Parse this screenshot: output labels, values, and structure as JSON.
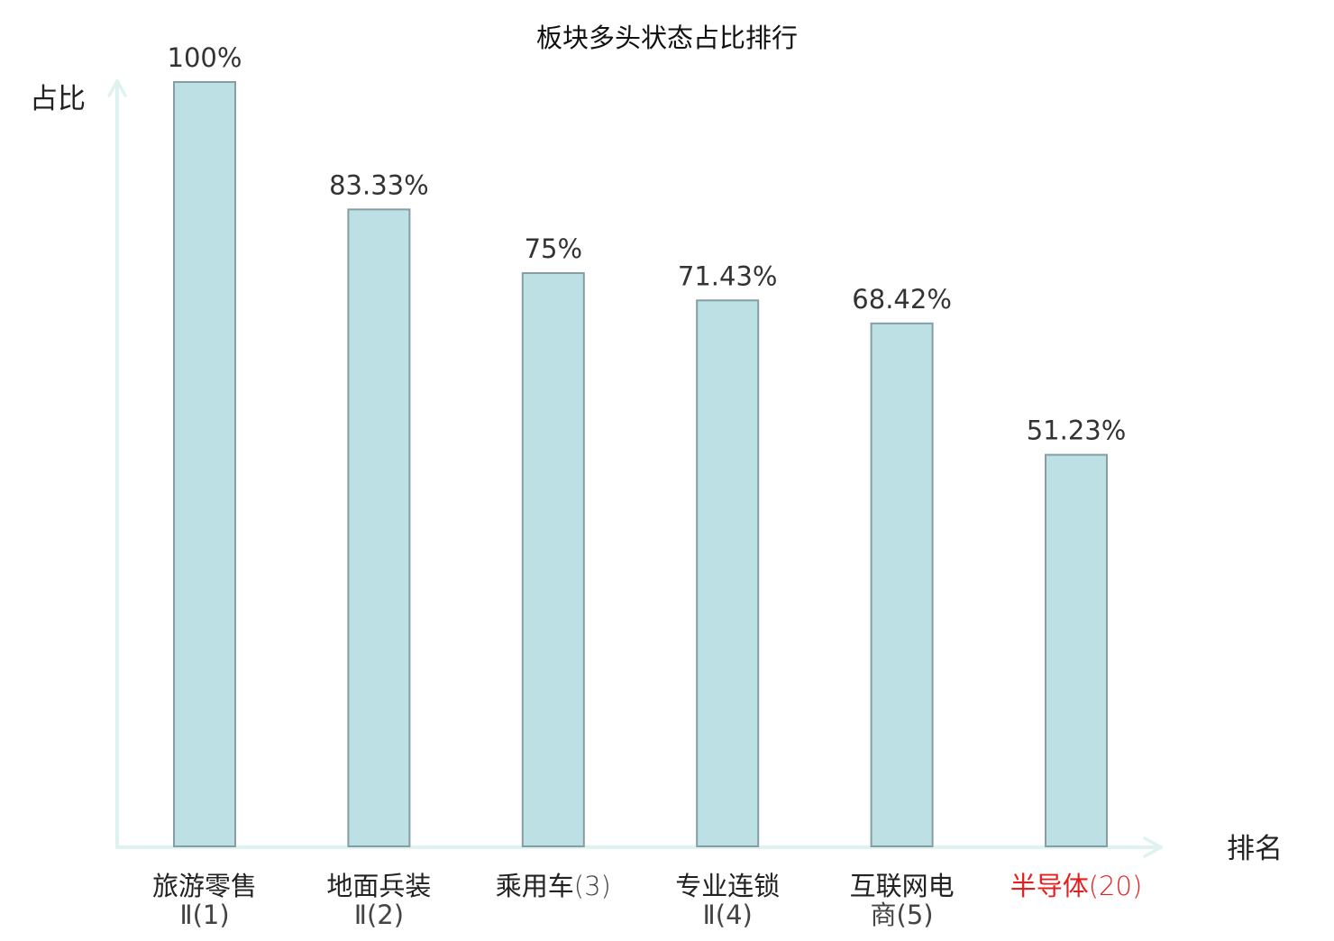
{
  "chart_data": {
    "type": "bar",
    "title": "板块多头状态占比排行",
    "ylabel": "占比",
    "xlabel": "排名",
    "ylim": [
      0,
      100
    ],
    "grid": false,
    "categories": [
      {
        "name": "旅游零售",
        "suffix": "Ⅱ(1)",
        "highlight": false
      },
      {
        "name": "地面兵装",
        "suffix": "Ⅱ(2)",
        "highlight": false
      },
      {
        "name": "乘用车",
        "suffix": "(3)",
        "highlight": false
      },
      {
        "name": "专业连锁",
        "suffix": "Ⅱ(4)",
        "highlight": false
      },
      {
        "name": "互联网电",
        "suffix": "商(5)",
        "highlight": false
      },
      {
        "name": "半导体",
        "suffix": "(20)",
        "highlight": true
      }
    ],
    "values": [
      100,
      83.33,
      75,
      71.43,
      68.42,
      51.23
    ],
    "value_labels": [
      "100%",
      "83.33%",
      "75%",
      "71.43%",
      "68.42%",
      "51.23%"
    ]
  },
  "colors": {
    "bar_fill": "#bce0e3",
    "bar_stroke": "#869ea3",
    "axis": "#def2f0",
    "text": "#222222",
    "value_text": "#333333",
    "highlight_text": "#e32020"
  }
}
